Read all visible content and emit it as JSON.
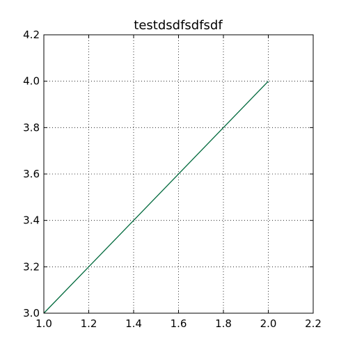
{
  "chart_data": {
    "type": "line",
    "title": "testdsdfsdfsdf",
    "xlabel": "",
    "ylabel": "",
    "xlim": [
      1.0,
      2.2
    ],
    "ylim": [
      3.0,
      4.2
    ],
    "x_ticks": [
      "1.0",
      "1.2",
      "1.4",
      "1.6",
      "1.8",
      "2.0",
      "2.2"
    ],
    "y_ticks": [
      "3.0",
      "3.2",
      "3.4",
      "3.6",
      "3.8",
      "4.0",
      "4.2"
    ],
    "grid": true,
    "legend": "none",
    "series": [
      {
        "color": "#00693c",
        "x": [
          1.0,
          2.0
        ],
        "y": [
          3.0,
          4.0
        ]
      }
    ]
  }
}
